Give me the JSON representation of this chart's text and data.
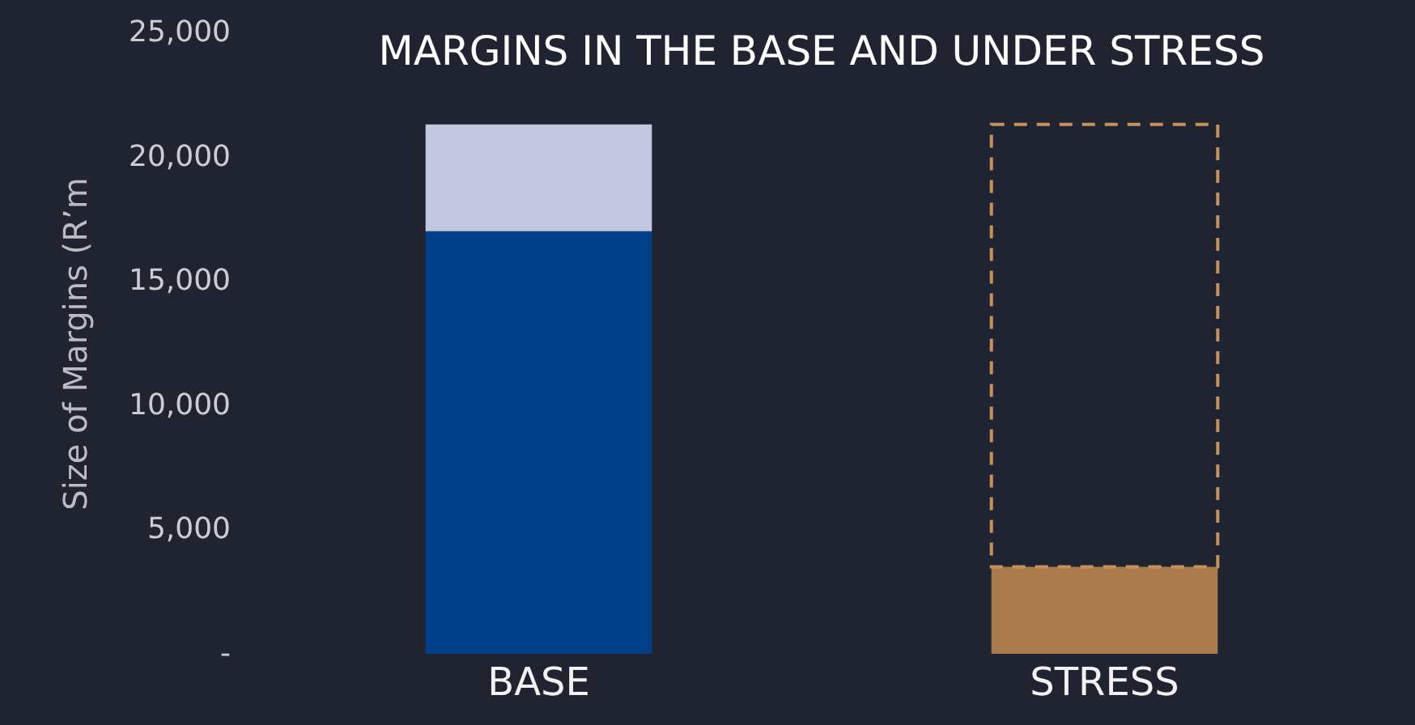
{
  "chart_data": {
    "type": "bar",
    "title": "MARGINS IN THE BASE AND UNDER STRESS",
    "ylabel": "Size of Margins (R’m",
    "categories": [
      "BASE",
      "STRESS"
    ],
    "stacked": true,
    "series": [
      {
        "colors": [
          "#003f8a",
          "#a97a4c"
        ],
        "values": [
          17000,
          3500
        ]
      },
      {
        "colors": [
          "#c2c8e0",
          null
        ],
        "values": [
          4300,
          null
        ]
      },
      {
        "colors": [
          null,
          "#c8915c"
        ],
        "line_style": "dashed",
        "values": [
          null,
          17800
        ]
      }
    ],
    "ylim": [
      0,
      25000
    ],
    "yticks": [
      {
        "value": 0,
        "label": "-"
      },
      {
        "value": 5000,
        "label": "5,000"
      },
      {
        "value": 10000,
        "label": "10,000"
      },
      {
        "value": 15000,
        "label": "15,000"
      },
      {
        "value": 20000,
        "label": "20,000"
      },
      {
        "value": 25000,
        "label": "25,000"
      }
    ],
    "grid": false
  }
}
